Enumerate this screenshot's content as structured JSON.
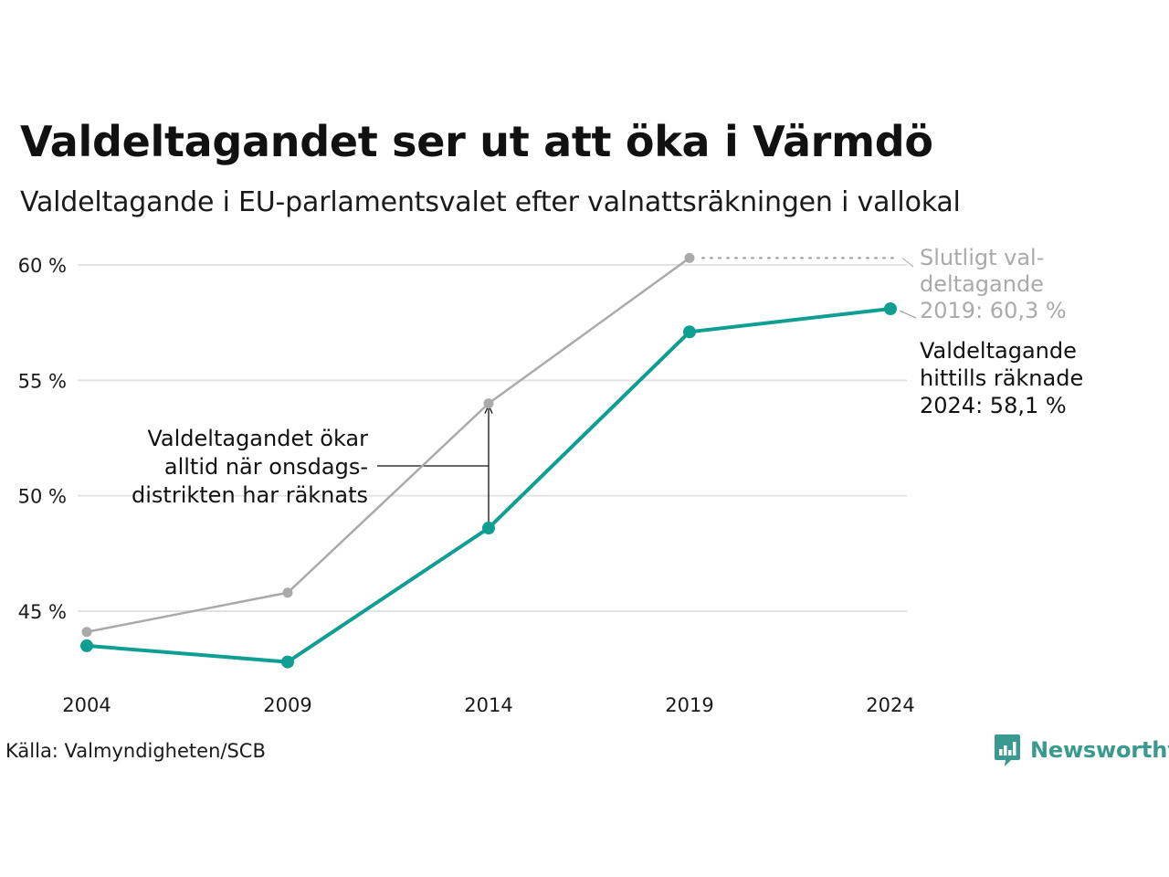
{
  "header": {
    "title": "Valdeltagandet ser ut att öka i Värmdö",
    "subtitle": "Valdeltagande i EU-parlamentsvalet efter valnattsräkningen i vallokal"
  },
  "chart_data": {
    "type": "line",
    "title": "Valdeltagandet ser ut att öka i Värmdö",
    "subtitle": "Valdeltagande i EU-parlamentsvalet efter valnattsräkningen i vallokal",
    "xlabel": "",
    "ylabel": "",
    "x": [
      2004,
      2009,
      2014,
      2019,
      2024
    ],
    "x_tick_labels": [
      "2004",
      "2009",
      "2014",
      "2019",
      "2024"
    ],
    "y_ticks": [
      45,
      50,
      55,
      60
    ],
    "y_tick_labels": [
      "45 %",
      "50 %",
      "55 %",
      "60 %"
    ],
    "ylim": [
      41.5,
      62
    ],
    "grid": true,
    "legend": "none",
    "series": [
      {
        "key": "final",
        "color": "#aaaaaa",
        "x": [
          2004,
          2009,
          2014,
          2019
        ],
        "values": [
          44.1,
          45.8,
          54.0,
          60.3
        ]
      },
      {
        "key": "counted",
        "color": "#0e9e92",
        "x": [
          2004,
          2009,
          2014,
          2019,
          2024
        ],
        "values": [
          43.5,
          42.8,
          48.6,
          57.1,
          58.1
        ]
      }
    ],
    "annotations": [
      {
        "key": "final_label",
        "lines": [
          "Slutligt val-",
          "deltagande",
          "2019: 60,3 %"
        ],
        "color": "#aaaaaa"
      },
      {
        "key": "counted_label",
        "lines": [
          "Valdeltagande",
          "hittills räknade",
          "2024: 58,1 %"
        ],
        "color": "#111111"
      },
      {
        "key": "gap_label",
        "lines": [
          "Valdeltagandet ökar",
          "alltid när onsdags-",
          "distrikten har räknats"
        ],
        "color": "#111111"
      }
    ]
  },
  "footer": {
    "source": "Källa: Valmyndigheten/SCB",
    "brand": "Newsworthy",
    "brand_icon": "newsworthy-logo-icon",
    "brand_color": "#3a9a8f"
  }
}
